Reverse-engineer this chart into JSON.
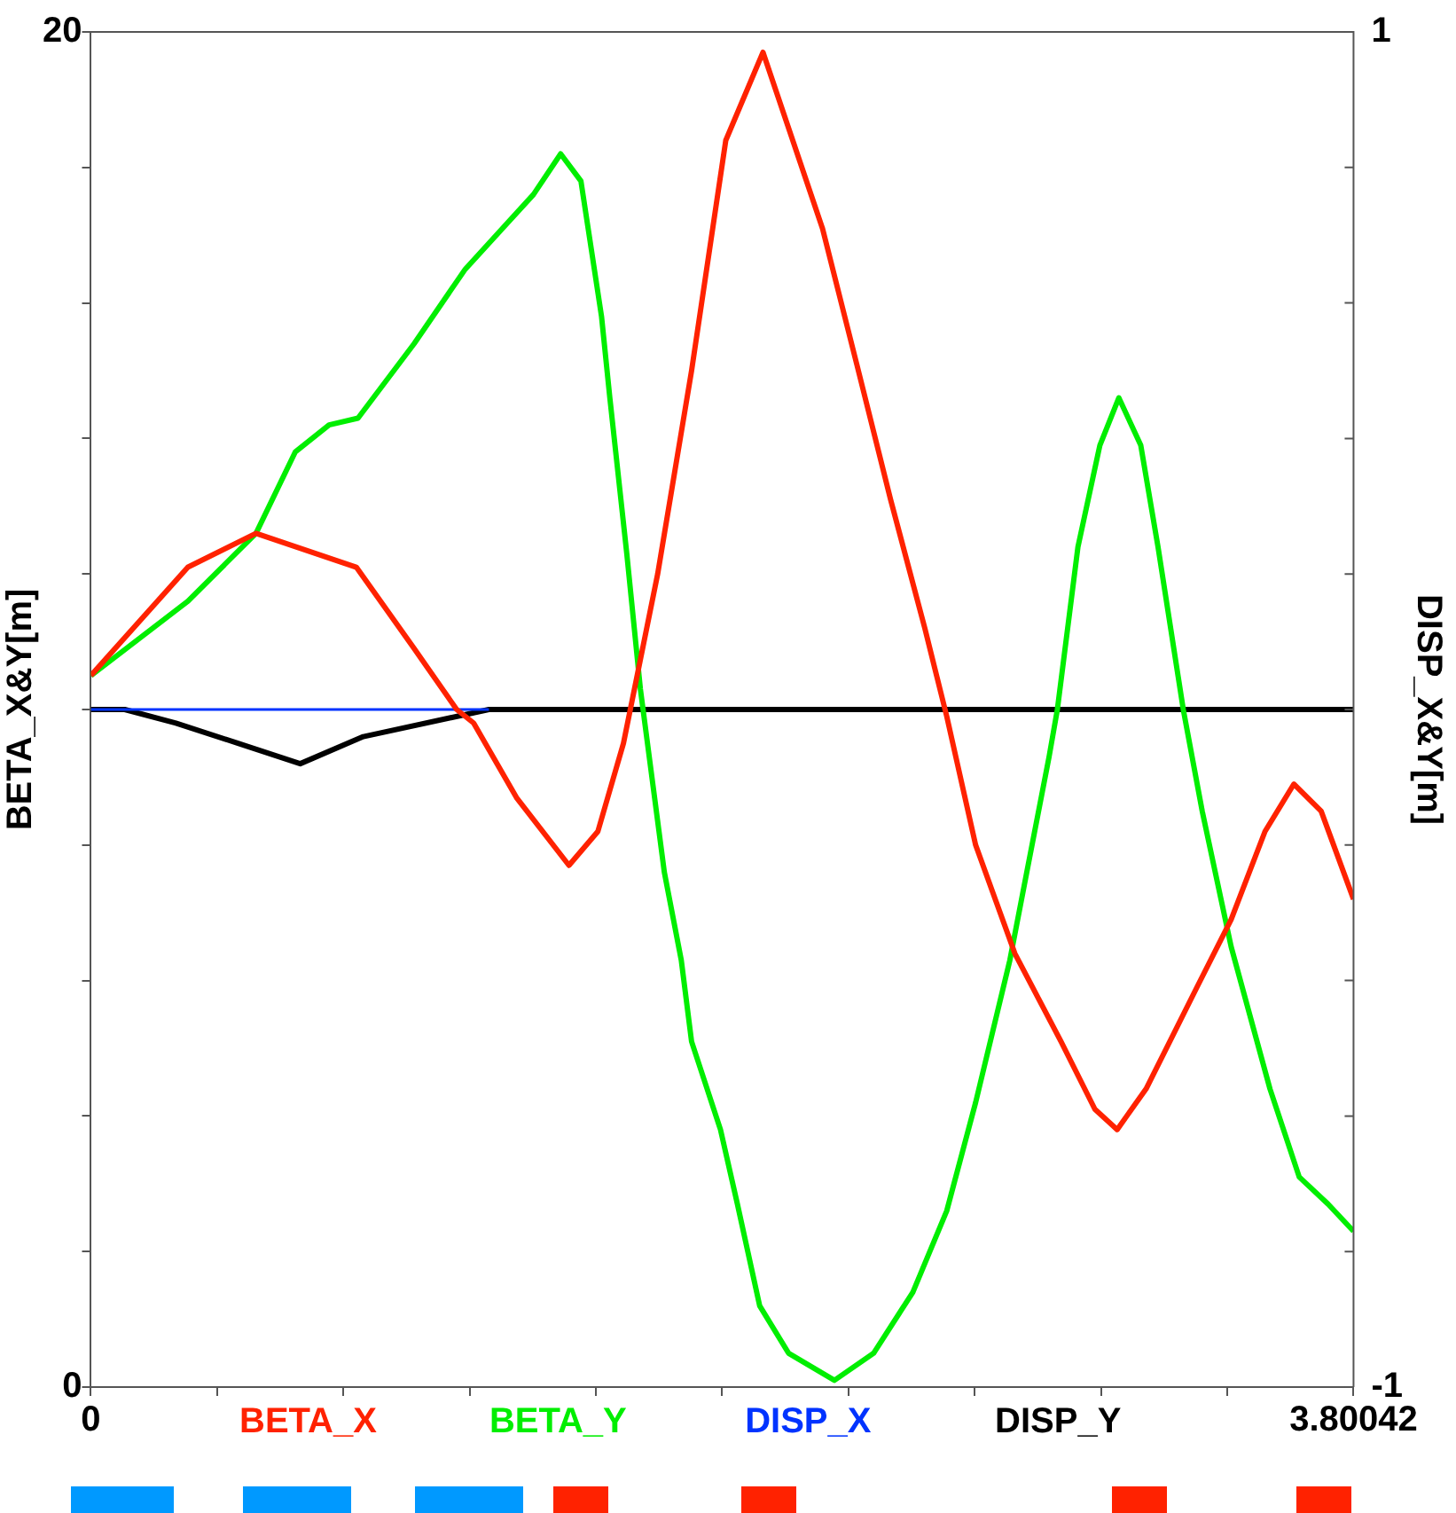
{
  "chart_data": {
    "type": "line",
    "ylabel": "BETA_X&Y[m]",
    "y2label": "DISP_X&Y[m]",
    "xlim": [
      0,
      3.80042
    ],
    "xticks": [
      0,
      {
        "value": 0.380042,
        "label": null
      },
      {
        "value": 0.760084,
        "label": null
      },
      {
        "value": 1.140126,
        "label": null
      },
      {
        "value": 1.520168,
        "label": null
      },
      {
        "value": 1.90021,
        "label": null
      },
      {
        "value": 2.280252,
        "label": null
      },
      {
        "value": 2.660294,
        "label": null
      },
      {
        "value": 3.040336,
        "label": null
      },
      {
        "value": 3.420378,
        "label": null
      },
      3.80042
    ],
    "ylim": [
      0,
      20
    ],
    "yticks": [
      0,
      {
        "value": 2,
        "label": null
      },
      {
        "value": 4,
        "label": null
      },
      {
        "value": 6,
        "label": null
      },
      {
        "value": 8,
        "label": null
      },
      {
        "value": 10,
        "label": null
      },
      {
        "value": 12,
        "label": null
      },
      {
        "value": 14,
        "label": null
      },
      {
        "value": 16,
        "label": null
      },
      {
        "value": 18,
        "label": null
      },
      20
    ],
    "y2lim": [
      -1,
      1
    ],
    "y2ticks": [
      -1,
      {
        "value": -0.8,
        "label": null
      },
      {
        "value": -0.6,
        "label": null
      },
      {
        "value": -0.4,
        "label": null
      },
      {
        "value": -0.2,
        "label": null
      },
      {
        "value": 0,
        "label": null
      },
      {
        "value": 0.2,
        "label": null
      },
      {
        "value": 0.4,
        "label": null
      },
      {
        "value": 0.6,
        "label": null
      },
      {
        "value": 0.8,
        "label": null
      },
      1
    ],
    "grid": false,
    "legend": "bottom",
    "marker": "none",
    "line_style": "solid",
    "series": [
      {
        "name": "BETA_X",
        "color": "#ff2200",
        "x": [
          0,
          0.292,
          0.497,
          0.799,
          0.973,
          1.101,
          1.152,
          1.281,
          1.439,
          1.526,
          1.603,
          1.706,
          1.808,
          1.911,
          2.023,
          2.202,
          2.305,
          2.407,
          2.51,
          2.576,
          2.663,
          2.781,
          2.92,
          3.022,
          3.089,
          3.176,
          3.329,
          3.432,
          3.534,
          3.621,
          3.703,
          3.80042
        ],
        "values": [
          10.5,
          12.1,
          12.6,
          12.1,
          10.9,
          10.0,
          9.8,
          8.7,
          7.7,
          8.2,
          9.5,
          12.0,
          15.0,
          18.4,
          19.7,
          17.1,
          15.1,
          13.1,
          11.2,
          9.9,
          8.0,
          6.4,
          5.1,
          4.1,
          3.8,
          4.4,
          5.9,
          6.9,
          8.2,
          8.9,
          8.5,
          7.2
        ]
      },
      {
        "name": "BETA_Y",
        "color": "#00ee00",
        "x": [
          0,
          0.292,
          0.497,
          0.615,
          0.717,
          0.804,
          0.973,
          1.127,
          1.332,
          1.414,
          1.475,
          1.537,
          1.562,
          1.613,
          1.654,
          1.726,
          1.777,
          1.808,
          1.895,
          1.946,
          2.013,
          2.1,
          2.238,
          2.356,
          2.474,
          2.576,
          2.663,
          2.766,
          2.817,
          2.884,
          2.909,
          2.971,
          3.037,
          3.094,
          3.16,
          3.212,
          3.288,
          3.345,
          3.432,
          3.549,
          3.637,
          3.724,
          3.80042
        ],
        "values": [
          10.5,
          11.6,
          12.6,
          13.8,
          14.2,
          14.3,
          15.4,
          16.5,
          17.6,
          18.2,
          17.8,
          15.8,
          14.6,
          12.3,
          10.3,
          7.6,
          6.3,
          5.1,
          3.8,
          2.7,
          1.2,
          0.5,
          0.1,
          0.5,
          1.4,
          2.6,
          4.2,
          6.3,
          7.6,
          9.3,
          10.0,
          12.4,
          13.9,
          14.6,
          13.9,
          12.4,
          10.0,
          8.5,
          6.5,
          4.4,
          3.1,
          2.7,
          2.3
        ]
      },
      {
        "name": "DISP_X",
        "color": "#0033ff",
        "axis": "y2",
        "x": [
          0,
          1.198
        ],
        "values": [
          0,
          0
        ]
      },
      {
        "name": "DISP_Y",
        "color": "#000000",
        "axis": "y2",
        "x": [
          0,
          0.102,
          0.256,
          0.443,
          0.63,
          0.82,
          1.198,
          3.80042
        ],
        "values": [
          0,
          0,
          -0.02,
          -0.05,
          -0.08,
          -0.04,
          0,
          0
        ]
      }
    ]
  }
}
